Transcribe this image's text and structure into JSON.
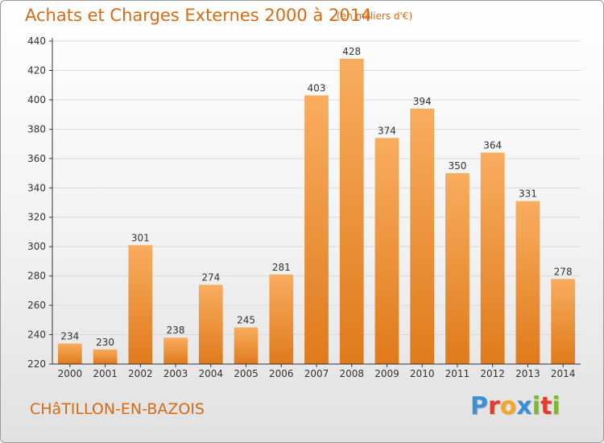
{
  "page": {
    "title": "Achats et Charges Externes 2000 à 2014",
    "unit": "(en milliers d'€)",
    "commune": "CHâTILLON-EN-BAZOIS",
    "logo": {
      "text": "Proxiti",
      "letters": [
        {
          "ch": "P",
          "color": "#3a8fd6"
        },
        {
          "ch": "r",
          "color": "#e63a2e"
        },
        {
          "ch": "o",
          "color": "#f5a623"
        },
        {
          "ch": "x",
          "color": "#3a8fd6"
        },
        {
          "ch": "i",
          "color": "#7cb82f"
        },
        {
          "ch": "t",
          "color": "#e63a2e"
        },
        {
          "ch": "i",
          "color": "#7cb82f"
        }
      ]
    }
  },
  "colors": {
    "title": "#d86a14",
    "bar_light": "#f8ad5e",
    "bar_dark": "#e07a1c",
    "grid": "#d9d9d9",
    "axis": "#333333"
  },
  "chart_data": {
    "type": "bar",
    "categories": [
      "2000",
      "2001",
      "2002",
      "2003",
      "2004",
      "2005",
      "2006",
      "2007",
      "2008",
      "2009",
      "2010",
      "2011",
      "2012",
      "2013",
      "2014"
    ],
    "values": [
      234,
      230,
      301,
      238,
      274,
      245,
      281,
      403,
      428,
      374,
      394,
      350,
      364,
      331,
      278
    ],
    "ylim": [
      220,
      440
    ],
    "yticks": [
      220,
      240,
      260,
      280,
      300,
      320,
      340,
      360,
      380,
      400,
      420,
      440
    ],
    "grid": true,
    "data_labels": true
  }
}
